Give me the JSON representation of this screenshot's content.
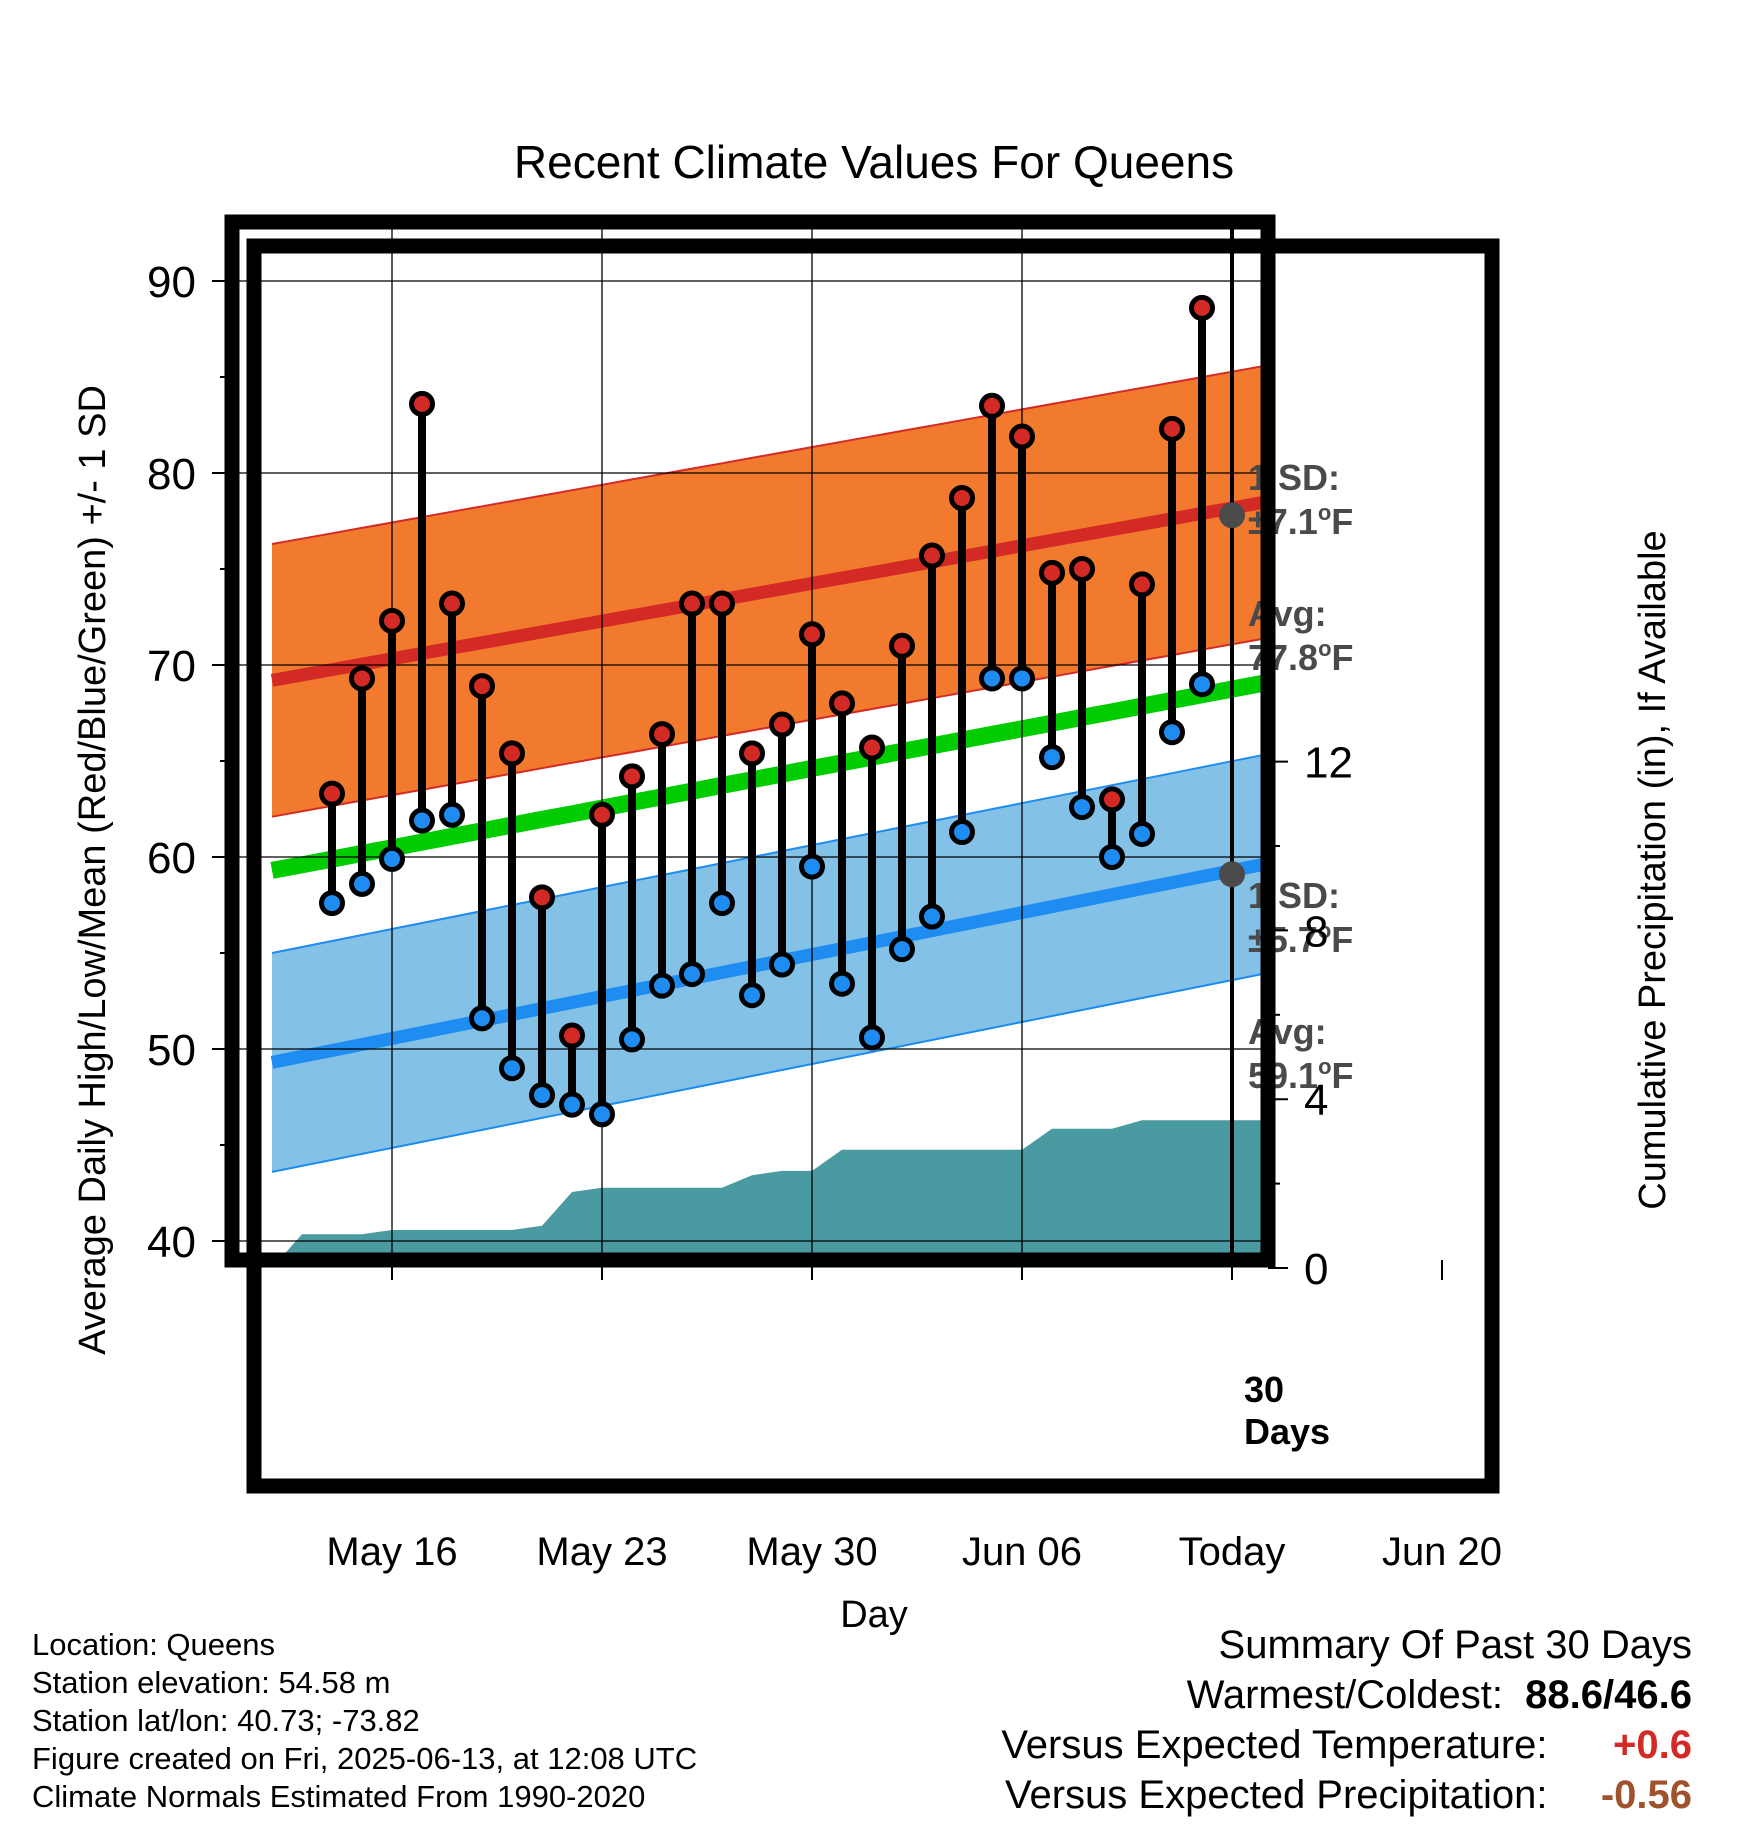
{
  "chart_data": {
    "type": "line",
    "title": "Recent Climate Values For Queens",
    "xlabel": "Day",
    "ylabel": "Average Daily High/Low/Mean (Red/Blue/Green) +/- 1 SD",
    "y2label": "Cumulative Precipitation (in), If Available",
    "ylim": [
      39,
      94
    ],
    "y2lim": [
      0,
      30
    ],
    "yticks": [
      40,
      50,
      60,
      70,
      80,
      90
    ],
    "y2ticks": [
      0,
      4,
      8,
      12
    ],
    "xlim": [
      "2025-05-12",
      "2025-06-22"
    ],
    "xticks": [
      {
        "date": "2025-05-16",
        "label": "May 16"
      },
      {
        "date": "2025-05-23",
        "label": "May 23"
      },
      {
        "date": "2025-05-30",
        "label": "May 30"
      },
      {
        "date": "2025-06-06",
        "label": "Jun 06"
      },
      {
        "date": "2025-06-13",
        "label": "Today"
      },
      {
        "date": "2025-06-20",
        "label": "Jun 20"
      }
    ],
    "today": "2025-06-13",
    "grid": true,
    "dates": [
      "2025-05-14",
      "2025-05-15",
      "2025-05-16",
      "2025-05-17",
      "2025-05-18",
      "2025-05-19",
      "2025-05-20",
      "2025-05-21",
      "2025-05-22",
      "2025-05-23",
      "2025-05-24",
      "2025-05-25",
      "2025-05-26",
      "2025-05-27",
      "2025-05-28",
      "2025-05-29",
      "2025-05-30",
      "2025-05-31",
      "2025-06-01",
      "2025-06-02",
      "2025-06-03",
      "2025-06-04",
      "2025-06-05",
      "2025-06-06",
      "2025-06-07",
      "2025-06-08",
      "2025-06-09",
      "2025-06-10",
      "2025-06-11",
      "2025-06-12"
    ],
    "highs": [
      63.3,
      69.3,
      72.3,
      83.6,
      73.2,
      68.9,
      65.4,
      57.9,
      50.7,
      62.2,
      64.2,
      66.4,
      73.2,
      73.2,
      65.4,
      66.9,
      71.6,
      68.0,
      65.7,
      71.0,
      75.7,
      78.7,
      83.5,
      81.9,
      74.8,
      75.0,
      63.0,
      74.2,
      82.3,
      88.6
    ],
    "lows": [
      57.6,
      58.6,
      59.9,
      61.9,
      62.2,
      51.6,
      49.0,
      47.6,
      47.1,
      46.6,
      50.5,
      53.3,
      53.9,
      57.6,
      52.8,
      54.4,
      59.5,
      53.4,
      50.6,
      55.2,
      56.9,
      61.3,
      69.3,
      69.3,
      65.2,
      62.6,
      60.0,
      61.2,
      66.5,
      69.0
    ],
    "normal_high": {
      "start": 69.2,
      "end": 80.7,
      "sd": 7.1
    },
    "normal_low": {
      "start": 49.3,
      "end": 62.1,
      "sd": 5.7
    },
    "normal_mean": {
      "start": 59.3,
      "end": 71.4
    },
    "precip_cumulative": [
      {
        "date": "2025-05-12",
        "value": 0.0
      },
      {
        "date": "2025-05-13",
        "value": 0.8
      },
      {
        "date": "2025-05-15",
        "value": 0.8
      },
      {
        "date": "2025-05-16",
        "value": 0.9
      },
      {
        "date": "2025-05-20",
        "value": 0.9
      },
      {
        "date": "2025-05-21",
        "value": 1.0
      },
      {
        "date": "2025-05-22",
        "value": 1.8
      },
      {
        "date": "2025-05-23",
        "value": 1.9
      },
      {
        "date": "2025-05-27",
        "value": 1.9
      },
      {
        "date": "2025-05-28",
        "value": 2.2
      },
      {
        "date": "2025-05-29",
        "value": 2.3
      },
      {
        "date": "2025-05-30",
        "value": 2.3
      },
      {
        "date": "2025-05-31",
        "value": 2.8
      },
      {
        "date": "2025-06-06",
        "value": 2.8
      },
      {
        "date": "2025-06-07",
        "value": 3.3
      },
      {
        "date": "2025-06-09",
        "value": 3.3
      },
      {
        "date": "2025-06-10",
        "value": 3.5
      },
      {
        "date": "2025-06-22",
        "value": 3.5
      }
    ],
    "annotations": {
      "high_sd_line1": "1 SD:",
      "high_sd_line2": "±7.1",
      "high_avg_line1": "Avg:",
      "high_avg_line2": "77.8",
      "low_sd_line1": "1 SD:",
      "low_sd_line2": "±5.7",
      "low_avg_line1": "Avg:",
      "low_avg_line2": "59.1",
      "unit_deg": "o",
      "unit_f": "F",
      "days_line1": "30",
      "days_line2": "Days"
    },
    "high_avg_today": 77.8,
    "low_avg_today": 59.1,
    "colors": {
      "high_band": "#f27a2e",
      "high_line": "#d42a25",
      "low_band": "#84c1e6",
      "low_line": "#1e8cf0",
      "mean_line": "#00cc00",
      "precip": "#4a9aa2",
      "high_dot": "#d42a25",
      "low_dot": "#1e8cf0",
      "avg_dot": "#4a4a4a",
      "annotation_text": "#4a4a4a"
    }
  },
  "info": {
    "location": "Location: Queens",
    "elevation": "Station elevation: 54.58 m",
    "latlon": "Station lat/lon: 40.73; -73.82",
    "created": "Figure created on Fri, 2025-06-13, at 12:08 UTC",
    "normals": "Climate Normals Estimated From 1990-2020"
  },
  "summary": {
    "title": "Summary Of Past 30 Days",
    "warm_cold_label": "Warmest/Coldest:",
    "warm_cold_value": "88.6/46.6",
    "temp_label": "Versus Expected Temperature:",
    "temp_value": "+0.6",
    "precip_label": "Versus Expected Precipitation:",
    "precip_value": "-0.56",
    "temp_color": "#d42a25",
    "precip_color": "#a0522d"
  }
}
